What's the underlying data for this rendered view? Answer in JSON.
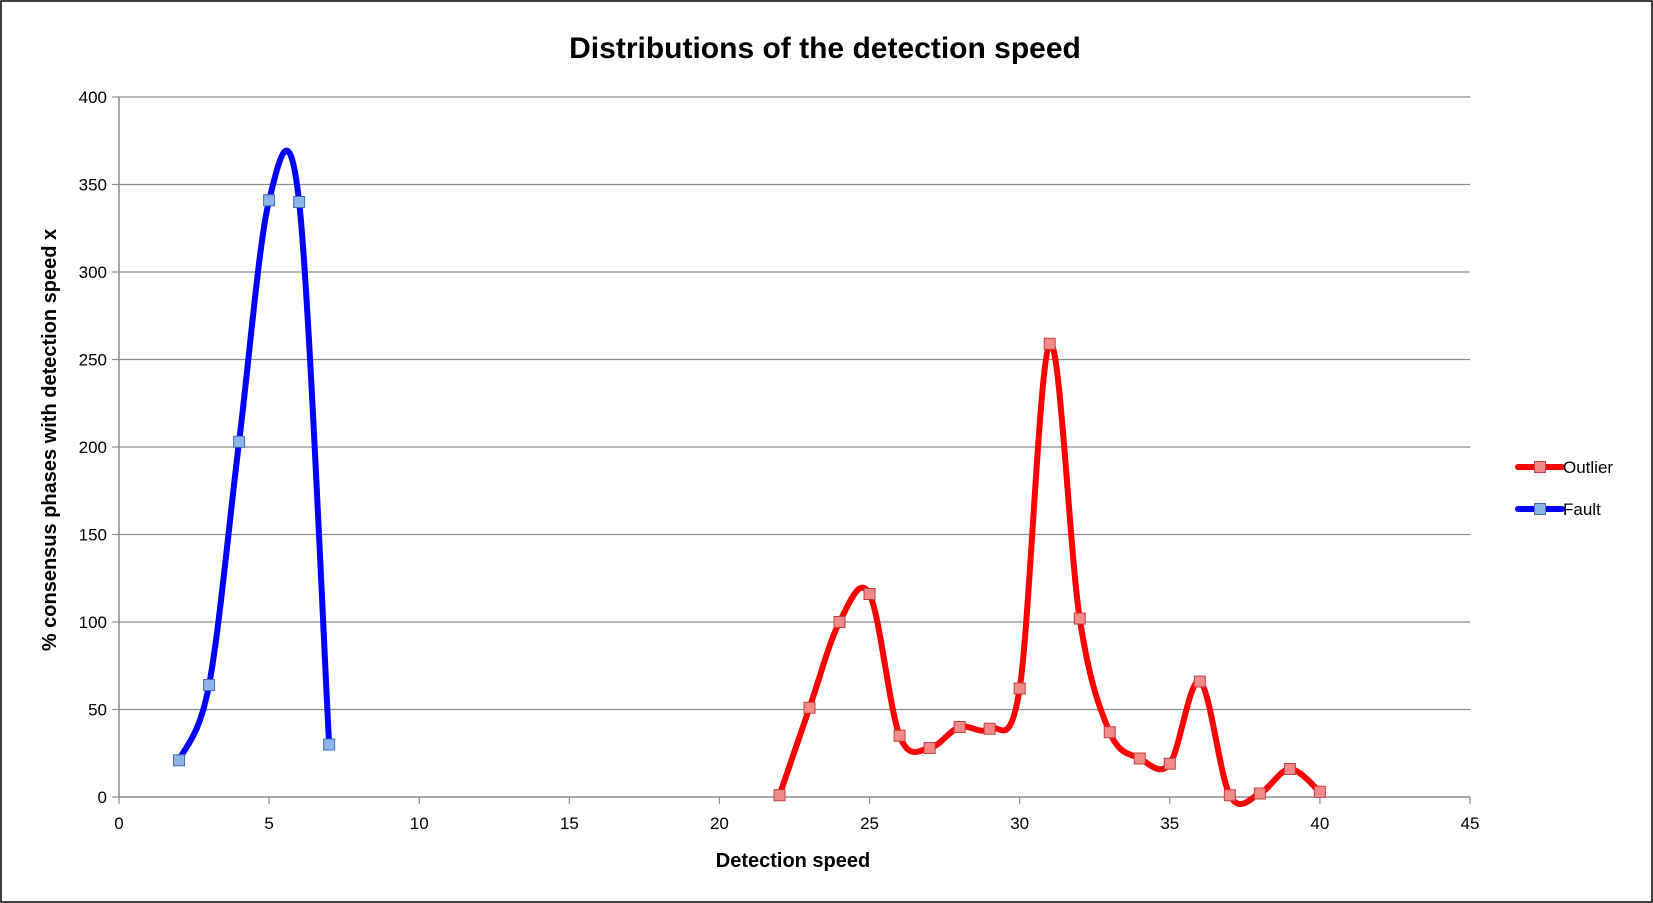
{
  "chart_data": {
    "type": "line",
    "title": "Distributions of the detection speed",
    "xlabel": "Detection speed",
    "ylabel": "% consensus phases with detection speed x",
    "xlim": [
      0,
      45
    ],
    "ylim": [
      0,
      400
    ],
    "xticks": [
      "0",
      "5",
      "10",
      "15",
      "20",
      "25",
      "30",
      "35",
      "40",
      "45"
    ],
    "yticks": [
      "0",
      "50",
      "100",
      "150",
      "200",
      "250",
      "300",
      "350",
      "400"
    ],
    "grid": true,
    "legend_position": "right",
    "smooth": true,
    "series": [
      {
        "name": "Outlier",
        "color": "#ff0000",
        "marker_color": "#f28a8a",
        "x": [
          22,
          23,
          24,
          25,
          26,
          27,
          28,
          29,
          30,
          31,
          32,
          33,
          34,
          35,
          36,
          37,
          38,
          39,
          40
        ],
        "y": [
          1,
          51,
          100,
          116,
          35,
          28,
          40,
          39,
          62,
          259,
          102,
          37,
          22,
          19,
          66,
          1,
          2,
          16,
          3
        ]
      },
      {
        "name": "Fault",
        "color": "#0000ff",
        "marker_color": "#8cb4e8",
        "x": [
          2,
          3,
          4,
          5,
          6,
          7
        ],
        "y": [
          21,
          64,
          203,
          341,
          340,
          30
        ]
      }
    ]
  }
}
